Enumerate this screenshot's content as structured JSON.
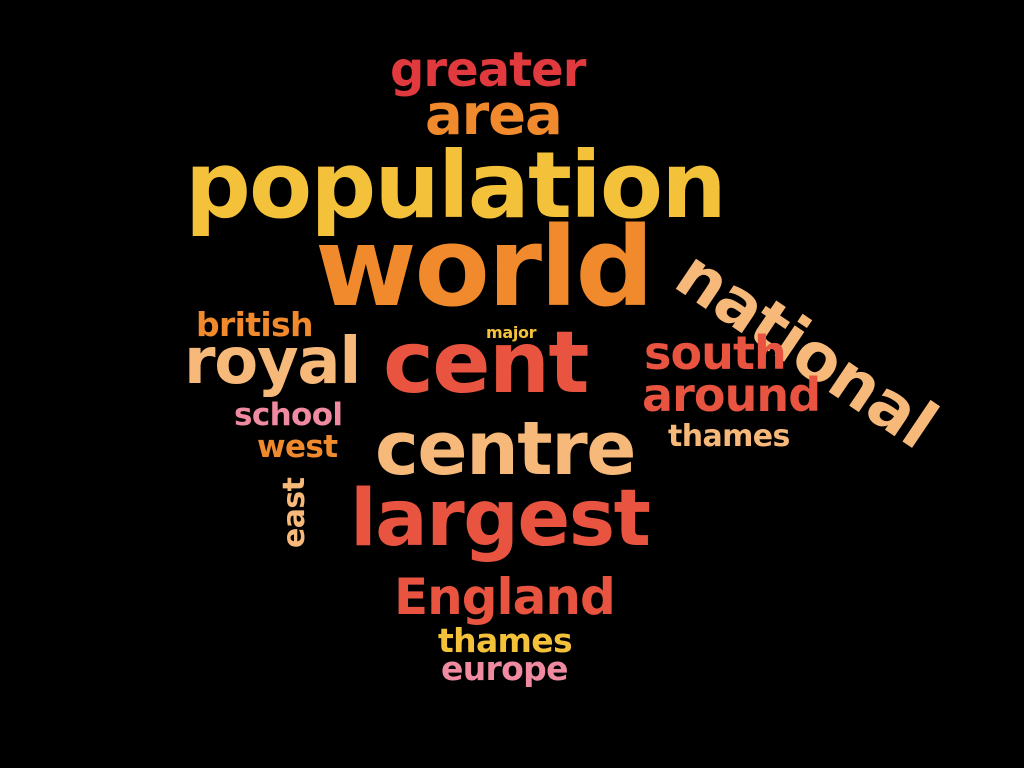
{
  "background_color": "#000000",
  "palette": {
    "red": "#e0393e",
    "orange": "#f08a2c",
    "yellow": "#f3c13a",
    "coral": "#e8543f",
    "peach": "#f6b97a",
    "pink": "#f08aa0",
    "light_orange": "#f4a455"
  },
  "words": [
    {
      "text": "greater",
      "color": "#e0393e"
    },
    {
      "text": "area",
      "color": "#f08a2c"
    },
    {
      "text": "population",
      "color": "#f3c13a"
    },
    {
      "text": "world",
      "color": "#f08a2c"
    },
    {
      "text": "national",
      "color": "#f6b97a"
    },
    {
      "text": "british",
      "color": "#f08a2c"
    },
    {
      "text": "major",
      "color": "#f3c13a"
    },
    {
      "text": "royal",
      "color": "#f6b97a"
    },
    {
      "text": "cent",
      "color": "#e8543f"
    },
    {
      "text": "south",
      "color": "#e8543f"
    },
    {
      "text": "around",
      "color": "#e8543f"
    },
    {
      "text": "school",
      "color": "#f08aa0"
    },
    {
      "text": "west",
      "color": "#f08a2c"
    },
    {
      "text": "centre",
      "color": "#f6b97a"
    },
    {
      "text": "thames",
      "color": "#f6b97a"
    },
    {
      "text": "east",
      "color": "#f6b97a"
    },
    {
      "text": "largest",
      "color": "#e8543f"
    },
    {
      "text": "England",
      "color": "#e8543f"
    },
    {
      "text": "thames",
      "color": "#f3c13a"
    },
    {
      "text": "europe",
      "color": "#f08aa0"
    }
  ]
}
